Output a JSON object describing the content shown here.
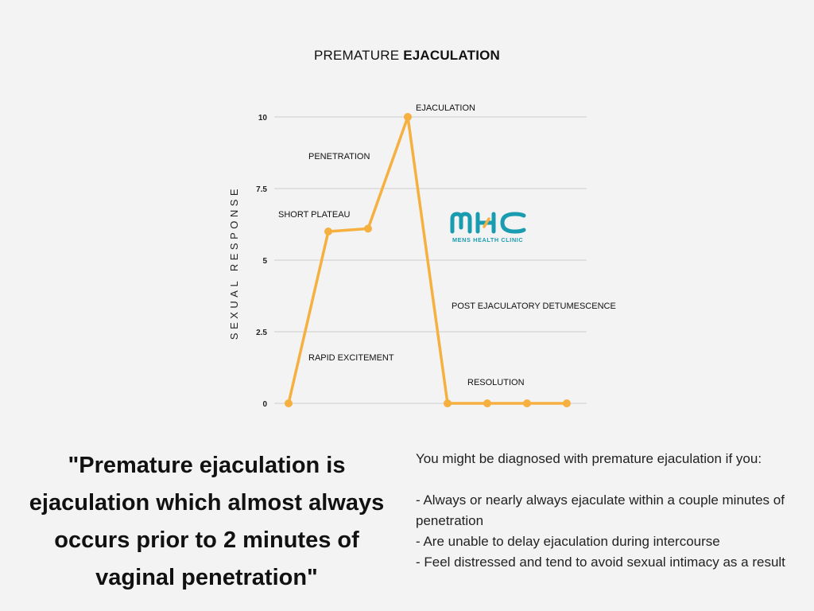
{
  "title": {
    "regular": "PREMATURE",
    "bold": "EJACULATION"
  },
  "colors": {
    "line": "#F5B040",
    "grid": "#d4d4d4",
    "logo": "#1A9CB0",
    "logo_accent": "#F5B040"
  },
  "chart_data": {
    "type": "line",
    "title": "PREMATURE EJACULATION",
    "ylabel": "SEXUAL RESPONSE",
    "xlabel": "",
    "ylim": [
      0,
      10
    ],
    "yticks": [
      {
        "value": 0,
        "label": "0"
      },
      {
        "value": 2.5,
        "label": "2.5"
      },
      {
        "value": 5,
        "label": "5"
      },
      {
        "value": 7.5,
        "label": "7.5"
      },
      {
        "value": 10,
        "label": "10"
      }
    ],
    "grid": true,
    "legend": "none",
    "x": [
      1,
      2,
      3,
      4,
      5,
      6,
      7,
      8
    ],
    "series": [
      {
        "values": [
          0,
          6,
          6.1,
          10,
          0,
          0,
          0,
          0
        ]
      }
    ],
    "annotations": [
      {
        "text": "EJACULATION"
      },
      {
        "text": "PENETRATION"
      },
      {
        "text": "SHORT PLATEAU"
      },
      {
        "text": "POST EJACULATORY DETUMESCENCE"
      },
      {
        "text": "RAPID EXCITEMENT"
      },
      {
        "text": "RESOLUTION"
      }
    ]
  },
  "logo": {
    "mark": "MHC",
    "subtitle": "MENS HEALTH CLINIC"
  },
  "quote": "\"Premature ejaculation is ejaculation which almost always occurs prior to 2 minutes of vaginal penetration\"",
  "criteria": {
    "intro": "You might be diagnosed with premature ejaculation if you:",
    "items": [
      "- Always or nearly always ejaculate within a couple minutes of penetration",
      "- Are unable to delay ejaculation during intercourse",
      "- Feel distressed and tend to avoid sexual intimacy as a result"
    ]
  }
}
